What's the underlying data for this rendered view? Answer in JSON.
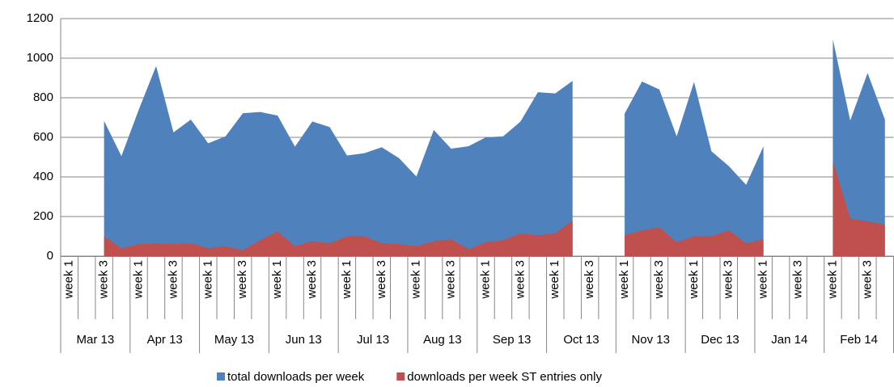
{
  "chart_data": {
    "type": "area",
    "categories": [
      "week 1",
      null,
      "week 3",
      null,
      "week 1",
      null,
      "week 3",
      null,
      "week 1",
      null,
      "week 3",
      null,
      "week 1",
      null,
      "week 3",
      null,
      "week 1",
      null,
      "week 3",
      null,
      "week 1",
      null,
      "week 3",
      null,
      "week 1",
      null,
      "week 3",
      null,
      "week 1",
      null,
      "week 3",
      null,
      "week 1",
      null,
      "week 3",
      null,
      "week 1",
      null,
      "week 3",
      null,
      "week 1",
      null,
      "week 3",
      null,
      "week 1",
      null,
      "week 3",
      null
    ],
    "groups": [
      "Mar 13",
      "Apr 13",
      "May 13",
      "Jun 13",
      "Jul 13",
      "Aug 13",
      "Sep 13",
      "Oct 13",
      "Nov 13",
      "Dec 13",
      "Jan 14",
      "Feb 14"
    ],
    "series": [
      {
        "name": "total downloads per week",
        "color": "#4f81bd",
        "values": [
          null,
          null,
          683,
          505,
          740,
          960,
          625,
          690,
          570,
          605,
          722,
          728,
          710,
          553,
          680,
          652,
          508,
          520,
          550,
          495,
          402,
          637,
          543,
          555,
          600,
          605,
          680,
          828,
          822,
          885,
          null,
          null,
          720,
          882,
          842,
          605,
          880,
          530,
          455,
          360,
          555,
          null,
          null,
          null,
          1095,
          685,
          925,
          690
        ]
      },
      {
        "name": "downloads per week ST entries only",
        "color": "#c0504d",
        "values": [
          null,
          null,
          100,
          40,
          60,
          65,
          60,
          65,
          40,
          50,
          30,
          80,
          125,
          50,
          75,
          65,
          100,
          100,
          65,
          60,
          50,
          75,
          85,
          35,
          70,
          80,
          115,
          105,
          115,
          180,
          null,
          null,
          105,
          130,
          145,
          70,
          100,
          100,
          130,
          65,
          85,
          null,
          null,
          null,
          480,
          190,
          175,
          160
        ]
      }
    ],
    "ylim": [
      0,
      1200
    ],
    "yticks": [
      0,
      200,
      400,
      600,
      800,
      1000,
      1200
    ],
    "grid": true,
    "legend": "bottom"
  }
}
